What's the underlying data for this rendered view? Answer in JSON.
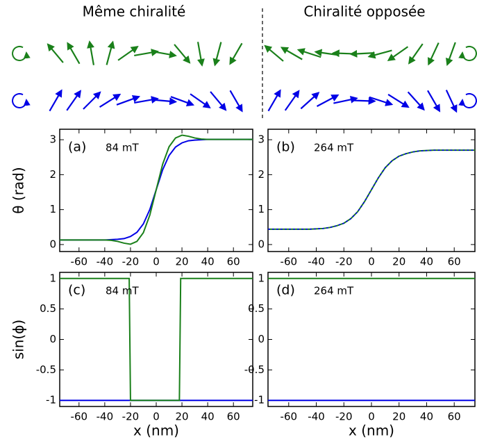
{
  "headers": [
    "Même chiralité",
    "Chiralité opposée"
  ],
  "chart_data": [
    {
      "type": "line",
      "panel": "(a)",
      "field": "84 mT",
      "ylabel": "θ (rad)",
      "xlim": [
        -75,
        75
      ],
      "ylim": [
        -0.2,
        3.3
      ],
      "xticks": [
        -60,
        -40,
        -20,
        0,
        20,
        40,
        60
      ],
      "yticks": [
        0,
        1,
        2,
        3
      ],
      "x": [
        -75,
        -70,
        -65,
        -60,
        -55,
        -50,
        -45,
        -40,
        -35,
        -30,
        -25,
        -20,
        -15,
        -10,
        -5,
        0,
        5,
        10,
        15,
        20,
        25,
        30,
        35,
        40,
        45,
        50,
        55,
        60,
        65,
        70,
        75
      ],
      "series": [
        {
          "name": "blue",
          "color": "#0000e6",
          "values": [
            0.13,
            0.13,
            0.13,
            0.13,
            0.13,
            0.13,
            0.13,
            0.13,
            0.14,
            0.15,
            0.17,
            0.23,
            0.35,
            0.59,
            1.0,
            1.57,
            2.14,
            2.55,
            2.79,
            2.91,
            2.97,
            2.99,
            3.0,
            3.01,
            3.01,
            3.01,
            3.01,
            3.01,
            3.01,
            3.01,
            3.01
          ]
        },
        {
          "name": "green",
          "color": "#1a801a",
          "values": [
            0.13,
            0.13,
            0.13,
            0.13,
            0.13,
            0.13,
            0.13,
            0.13,
            0.12,
            0.09,
            0.04,
            0.01,
            0.09,
            0.34,
            0.84,
            1.57,
            2.3,
            2.8,
            3.05,
            3.13,
            3.1,
            3.05,
            3.02,
            3.01,
            3.01,
            3.01,
            3.01,
            3.01,
            3.01,
            3.01,
            3.01
          ]
        }
      ]
    },
    {
      "type": "line",
      "panel": "(b)",
      "field": "264 mT",
      "xlim": [
        -75,
        75
      ],
      "ylim": [
        -0.2,
        3.3
      ],
      "xticks": [
        -60,
        -40,
        -20,
        0,
        20,
        40,
        60
      ],
      "yticks": [
        0,
        1,
        2,
        3
      ],
      "x": [
        -75,
        -70,
        -65,
        -60,
        -55,
        -50,
        -45,
        -40,
        -35,
        -30,
        -25,
        -20,
        -15,
        -10,
        -5,
        0,
        5,
        10,
        15,
        20,
        25,
        30,
        35,
        40,
        45,
        50,
        55,
        60,
        65,
        70,
        75
      ],
      "series": [
        {
          "name": "green",
          "color": "#1a801a",
          "values": [
            0.44,
            0.44,
            0.44,
            0.44,
            0.44,
            0.44,
            0.44,
            0.45,
            0.46,
            0.49,
            0.54,
            0.61,
            0.74,
            0.94,
            1.23,
            1.57,
            1.91,
            2.2,
            2.4,
            2.53,
            2.6,
            2.65,
            2.68,
            2.69,
            2.7,
            2.7,
            2.7,
            2.7,
            2.7,
            2.7,
            2.7
          ]
        },
        {
          "name": "blue",
          "color": "#0000e6",
          "dashed": true,
          "values": [
            0.44,
            0.44,
            0.44,
            0.44,
            0.44,
            0.44,
            0.44,
            0.45,
            0.46,
            0.49,
            0.54,
            0.61,
            0.74,
            0.94,
            1.23,
            1.57,
            1.91,
            2.2,
            2.4,
            2.53,
            2.6,
            2.65,
            2.68,
            2.69,
            2.7,
            2.7,
            2.7,
            2.7,
            2.7,
            2.7,
            2.7
          ]
        }
      ]
    },
    {
      "type": "line",
      "panel": "(c)",
      "field": "84 mT",
      "ylabel": "sin(ϕ)",
      "xlabel": "x (nm)",
      "xlim": [
        -75,
        75
      ],
      "ylim": [
        -1.1,
        1.1
      ],
      "xticks": [
        -60,
        -40,
        -20,
        0,
        20,
        40,
        60
      ],
      "yticks": [
        1,
        0.5,
        0,
        -0.5,
        -1
      ],
      "x": [
        -75,
        -21,
        -20,
        18,
        19,
        75
      ],
      "series": [
        {
          "name": "blue",
          "color": "#0000e6",
          "values": [
            -1,
            -1,
            -1,
            -1,
            -1,
            -1
          ]
        },
        {
          "name": "green",
          "color": "#1a801a",
          "values": [
            1,
            1,
            -1,
            -1,
            1,
            1
          ]
        }
      ]
    },
    {
      "type": "line",
      "panel": "(d)",
      "field": "264 mT",
      "xlabel": "x (nm)",
      "xlim": [
        -75,
        75
      ],
      "ylim": [
        -1.1,
        1.1
      ],
      "xticks": [
        -60,
        -40,
        -20,
        0,
        20,
        40,
        60
      ],
      "yticks": [
        1,
        0.5,
        0,
        -0.5,
        -1
      ],
      "x": [
        -75,
        75
      ],
      "series": [
        {
          "name": "blue",
          "color": "#0000e6",
          "values": [
            -1,
            -1
          ]
        },
        {
          "name": "green",
          "color": "#1a801a",
          "values": [
            1,
            1
          ]
        }
      ]
    }
  ]
}
